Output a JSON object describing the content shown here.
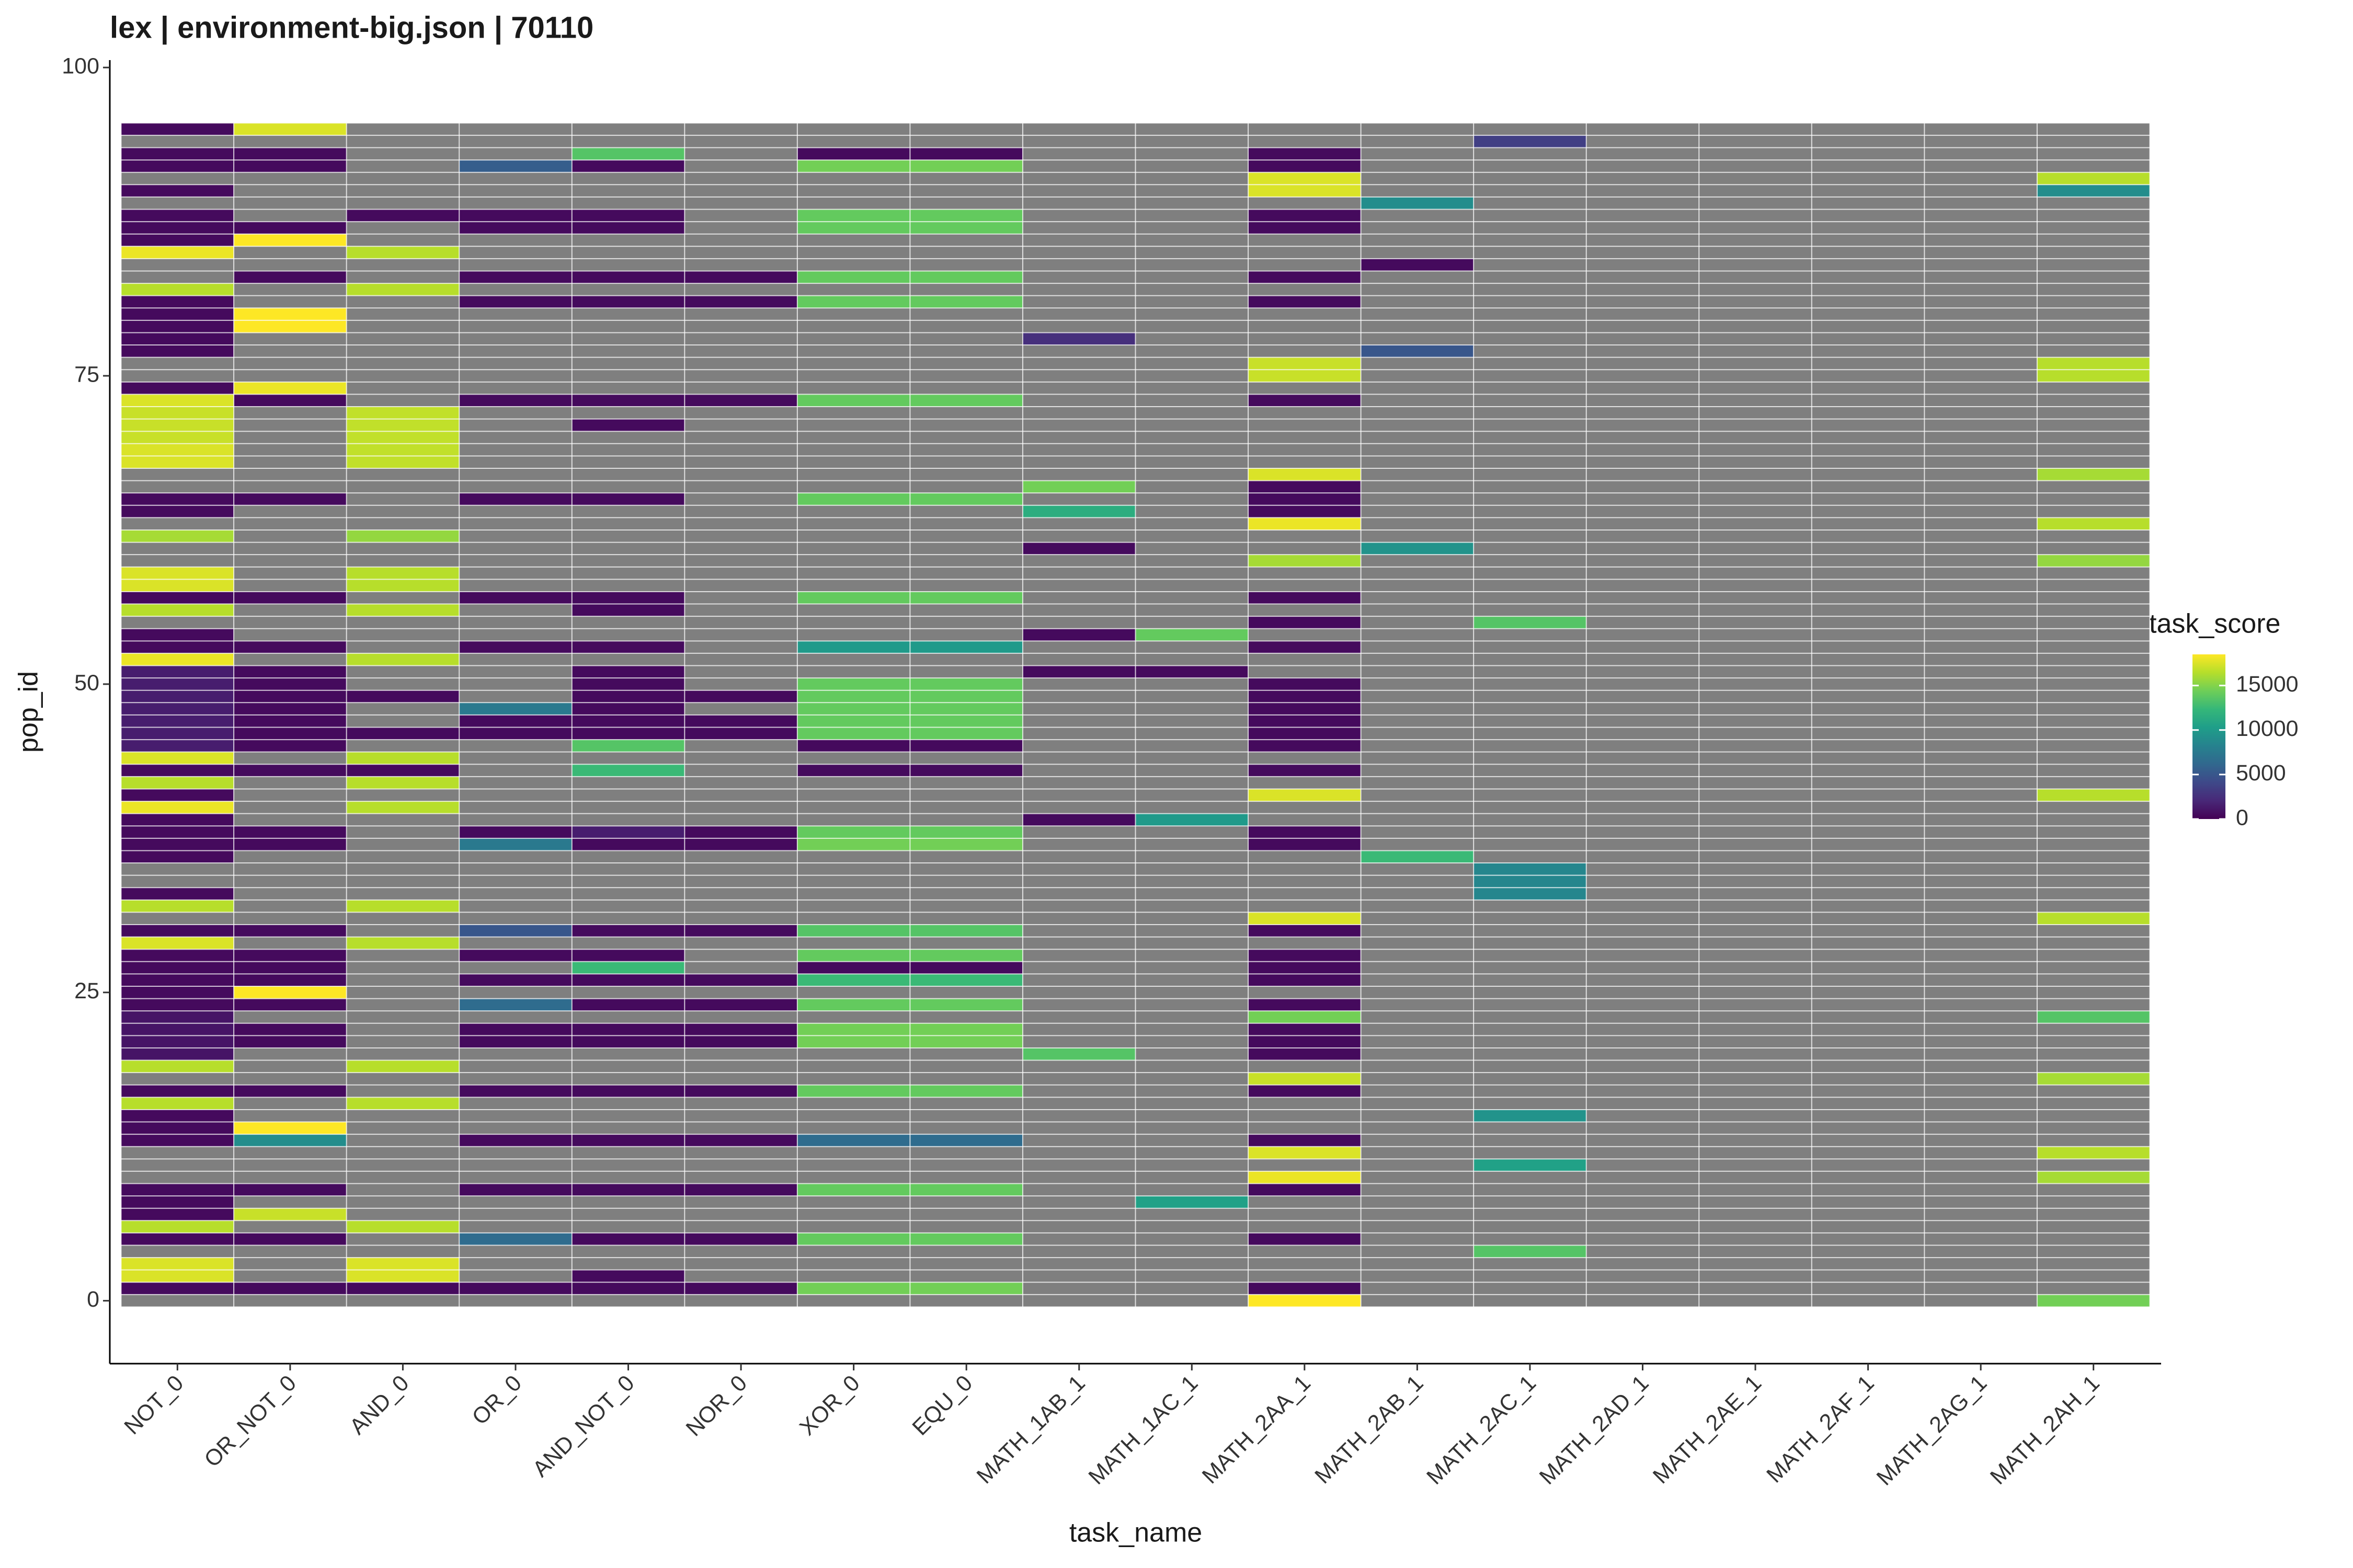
{
  "chart_data": {
    "type": "heatmap",
    "title": "lex | environment-big.json | 70110",
    "x_label": "task_name",
    "y_label": "pop_id",
    "legend_title": "task_score",
    "ylim": [
      -5.1,
      100.6
    ],
    "yticks": [
      0,
      25,
      50,
      75,
      100
    ],
    "clim": [
      0,
      18500
    ],
    "legend_ticks": [
      0,
      5000,
      10000,
      15000
    ],
    "colormap": [
      "#440154",
      "#482878",
      "#3e4989",
      "#31688e",
      "#26828e",
      "#1f9e89",
      "#35b779",
      "#6ece58",
      "#b5de2b",
      "#fde725"
    ],
    "na_color": "#7f7f7f",
    "categories": [
      "NOT_0",
      "OR_NOT_0",
      "AND_0",
      "OR_0",
      "AND_NOT_0",
      "NOR_0",
      "XOR_0",
      "EQU_0",
      "MATH_1AB_1",
      "MATH_1AC_1",
      "MATH_2AA_1",
      "MATH_2AB_1",
      "MATH_2AC_1",
      "MATH_2AD_1",
      "MATH_2AE_1",
      "MATH_2AF_1",
      "MATH_2AG_1",
      "MATH_2AH_1"
    ],
    "columns": [
      {
        "pop_id": [
          95,
          93,
          92,
          90,
          88,
          87,
          86,
          85,
          82,
          81,
          80,
          79,
          78,
          77,
          74,
          73,
          72,
          71,
          70,
          69,
          68,
          65,
          64,
          62,
          59,
          58,
          57,
          56,
          54,
          53,
          52,
          51,
          50,
          49,
          48,
          47,
          46,
          45,
          44,
          43,
          42,
          41,
          40,
          39,
          38,
          37,
          36,
          33,
          32,
          30,
          29,
          28,
          27,
          26,
          25,
          24,
          23,
          22,
          21,
          20,
          19,
          17,
          16,
          15,
          14,
          13,
          9,
          8,
          7,
          6,
          5,
          3,
          2,
          1
        ],
        "values": [
          500,
          500,
          500,
          500,
          500,
          500,
          500,
          18000,
          16500,
          500,
          500,
          500,
          500,
          500,
          500,
          17500,
          17000,
          17000,
          17000,
          17500,
          17500,
          500,
          500,
          16000,
          17500,
          17500,
          500,
          16500,
          500,
          500,
          18000,
          1500,
          1500,
          1500,
          1500,
          1500,
          1500,
          1500,
          17500,
          500,
          16500,
          500,
          18000,
          500,
          500,
          500,
          500,
          500,
          16500,
          500,
          17500,
          500,
          500,
          500,
          500,
          500,
          1000,
          1000,
          1000,
          1000,
          16500,
          500,
          16500,
          500,
          500,
          500,
          500,
          500,
          500,
          16500,
          500,
          17500,
          17500,
          500
        ]
      },
      {
        "pop_id": [
          95,
          93,
          92,
          87,
          86,
          83,
          80,
          79,
          74,
          73,
          65,
          57,
          53,
          51,
          50,
          49,
          48,
          47,
          46,
          45,
          43,
          38,
          37,
          30,
          28,
          27,
          26,
          25,
          24,
          22,
          21,
          17,
          14,
          13,
          9,
          7,
          5,
          1
        ],
        "values": [
          17500,
          500,
          500,
          500,
          18500,
          500,
          18500,
          18500,
          18000,
          500,
          500,
          500,
          500,
          500,
          500,
          500,
          500,
          500,
          500,
          500,
          500,
          500,
          500,
          500,
          500,
          500,
          500,
          18500,
          500,
          500,
          500,
          500,
          18500,
          9000,
          500,
          17000,
          500,
          500
        ]
      },
      {
        "pop_id": [
          88,
          85,
          82,
          72,
          71,
          70,
          69,
          68,
          62,
          59,
          58,
          56,
          52,
          49,
          46,
          44,
          43,
          42,
          40,
          32,
          29,
          19,
          16,
          6,
          3,
          2,
          1
        ],
        "values": [
          500,
          16500,
          16500,
          16800,
          16800,
          16800,
          16800,
          16800,
          15500,
          16500,
          16500,
          16500,
          16500,
          500,
          500,
          16500,
          500,
          16500,
          16500,
          16500,
          16500,
          16500,
          16500,
          16500,
          17500,
          17500,
          500
        ]
      },
      {
        "pop_id": [
          92,
          88,
          87,
          83,
          81,
          73,
          65,
          57,
          53,
          48,
          47,
          46,
          38,
          37,
          30,
          28,
          26,
          24,
          22,
          21,
          17,
          13,
          9,
          5,
          1
        ],
        "values": [
          5500,
          500,
          500,
          500,
          500,
          500,
          500,
          500,
          500,
          7500,
          500,
          500,
          500,
          7500,
          5000,
          500,
          500,
          6500,
          500,
          500,
          500,
          500,
          500,
          6500,
          500
        ]
      },
      {
        "pop_id": [
          93,
          92,
          88,
          87,
          83,
          81,
          73,
          71,
          65,
          57,
          56,
          53,
          51,
          50,
          49,
          48,
          47,
          46,
          45,
          43,
          38,
          37,
          30,
          28,
          27,
          26,
          24,
          22,
          21,
          17,
          13,
          9,
          5,
          2,
          1
        ],
        "values": [
          13500,
          500,
          500,
          500,
          500,
          500,
          500,
          500,
          500,
          500,
          500,
          500,
          500,
          500,
          500,
          500,
          500,
          500,
          13500,
          12500,
          1500,
          500,
          500,
          500,
          12500,
          500,
          500,
          500,
          500,
          500,
          500,
          500,
          500,
          500,
          500
        ]
      },
      {
        "pop_id": [
          83,
          81,
          73,
          49,
          47,
          46,
          38,
          37,
          30,
          26,
          24,
          22,
          21,
          17,
          13,
          9,
          5,
          1
        ],
        "values": [
          500,
          500,
          500,
          500,
          500,
          500,
          500,
          500,
          500,
          500,
          500,
          500,
          500,
          500,
          500,
          500,
          500,
          500
        ]
      },
      {
        "pop_id": [
          93,
          92,
          88,
          87,
          83,
          81,
          73,
          65,
          57,
          53,
          50,
          49,
          48,
          47,
          46,
          45,
          43,
          38,
          37,
          30,
          28,
          27,
          26,
          24,
          22,
          21,
          17,
          13,
          9,
          5,
          1
        ],
        "values": [
          500,
          14500,
          14000,
          14000,
          14000,
          14000,
          14000,
          14000,
          14000,
          10000,
          14000,
          14000,
          14000,
          14000,
          14000,
          500,
          500,
          14000,
          14500,
          13500,
          14000,
          500,
          12500,
          14000,
          14500,
          14500,
          14000,
          6500,
          14000,
          14000,
          14500
        ]
      },
      {
        "pop_id": [
          93,
          92,
          88,
          87,
          83,
          81,
          73,
          65,
          57,
          53,
          50,
          49,
          48,
          47,
          46,
          45,
          43,
          38,
          37,
          30,
          28,
          27,
          26,
          24,
          22,
          21,
          17,
          13,
          9,
          5,
          1
        ],
        "values": [
          500,
          14500,
          14000,
          14000,
          14000,
          14000,
          14000,
          14000,
          14000,
          10000,
          14000,
          14000,
          14000,
          14000,
          14000,
          500,
          500,
          14000,
          14500,
          13500,
          14000,
          500,
          12500,
          14000,
          14500,
          14500,
          14000,
          6500,
          14000,
          14000,
          14500
        ]
      },
      {
        "pop_id": [
          78,
          66,
          64,
          61,
          54,
          51,
          39,
          20
        ],
        "values": [
          2500,
          14500,
          11500,
          500,
          500,
          500,
          500,
          13500
        ]
      },
      {
        "pop_id": [
          54,
          51,
          39,
          8
        ],
        "values": [
          14000,
          500,
          10000,
          10500
        ]
      },
      {
        "pop_id": [
          93,
          92,
          91,
          90,
          88,
          87,
          83,
          81,
          76,
          75,
          73,
          67,
          66,
          65,
          64,
          63,
          60,
          57,
          55,
          53,
          50,
          49,
          48,
          47,
          46,
          45,
          43,
          41,
          38,
          37,
          31,
          30,
          28,
          27,
          26,
          24,
          23,
          22,
          21,
          20,
          18,
          17,
          13,
          12,
          10,
          9,
          5,
          1,
          0
        ],
        "values": [
          500,
          500,
          17500,
          17500,
          500,
          500,
          500,
          500,
          17000,
          17000,
          500,
          17500,
          500,
          500,
          500,
          18000,
          16000,
          500,
          500,
          500,
          500,
          500,
          500,
          500,
          500,
          500,
          500,
          17500,
          500,
          500,
          17500,
          500,
          500,
          500,
          500,
          500,
          14500,
          500,
          500,
          500,
          17000,
          500,
          500,
          17500,
          18000,
          500,
          500,
          500,
          18500
        ]
      },
      {
        "pop_id": [
          89,
          84,
          77,
          61,
          36
        ],
        "values": [
          9000,
          500,
          5000,
          9500,
          12500
        ]
      },
      {
        "pop_id": [
          94,
          55,
          35,
          34,
          33,
          15,
          11,
          4
        ],
        "values": [
          3500,
          13500,
          8500,
          8500,
          8500,
          9500,
          10500,
          13500
        ]
      },
      {
        "pop_id": [],
        "values": []
      },
      {
        "pop_id": [],
        "values": []
      },
      {
        "pop_id": [],
        "values": []
      },
      {
        "pop_id": [],
        "values": []
      },
      {
        "pop_id": [
          91,
          90,
          76,
          75,
          67,
          63,
          60,
          41,
          31,
          23,
          18,
          12,
          10,
          0
        ],
        "values": [
          16500,
          9000,
          16500,
          16500,
          16000,
          16500,
          15500,
          16500,
          16500,
          13500,
          16000,
          16500,
          16000,
          14500
        ]
      }
    ]
  }
}
